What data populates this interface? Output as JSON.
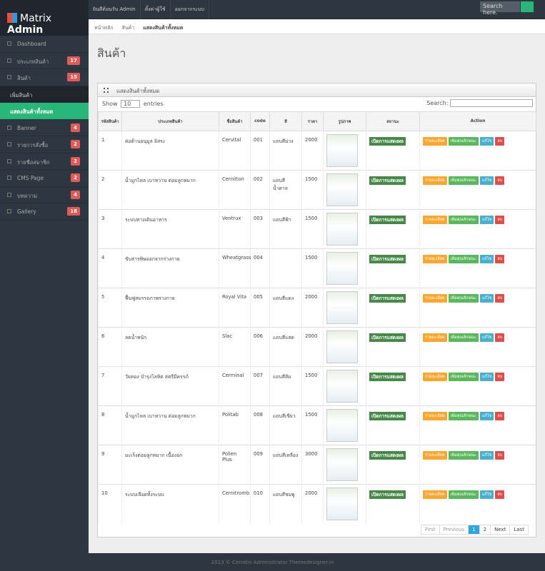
{
  "header": {
    "logo_part1": "Matrix",
    "logo_part2": "Admin",
    "nav": [
      "ยินดีต้อนรับ Admin",
      "ตั้งค่าผู้ใช้",
      "ออกจากระบบ"
    ],
    "search_placeholder": "Search here."
  },
  "sidebar": {
    "items": [
      {
        "label": "Dashboard"
      },
      {
        "label": "ประเภทสินค้า",
        "badge": 17
      },
      {
        "label": "สินค้า",
        "badge": 15
      },
      {
        "label": "เพิ่มสินค้า"
      },
      {
        "label": "แสดงสินค้าทั้งหมด"
      },
      {
        "label": "Banner",
        "badge": 4
      },
      {
        "label": "รายการสั่งซื้อ",
        "badge": 2
      },
      {
        "label": "รายชื่อสมาชิก",
        "badge": 2
      },
      {
        "label": "CMS Page",
        "badge": 2
      },
      {
        "label": "บทความ",
        "badge": 4
      },
      {
        "label": "Gallery",
        "badge": 18
      }
    ]
  },
  "breadcrumb": [
    "หน้าหลัก",
    "สินค้า",
    "แสดงสินค้าทั้งหมด"
  ],
  "page_title": "สินค้า",
  "widget": {
    "title": "แสดงสินค้าทั้งหมด",
    "show": "Show",
    "length": "10",
    "entries": "entries",
    "search": "Search:"
  },
  "table": {
    "columns": [
      "รหัสสินค้า",
      "ประเภทสินค้า",
      "ชื่อสินค้า",
      "code",
      "สี",
      "ราคา",
      "รูปภาพ",
      "สถานะ",
      "Action"
    ],
    "rows": [
      {
        "cells": [
          "1",
          "ต่อต้านอนุมูล อิสระ",
          "Cervital",
          "001",
          "แถบสีม่วง",
          "2000"
        ],
        "status": "เปิดการแสดงผล",
        "actions": [
          "รายละเอียด",
          "เพิ่มคุณลักษณะ",
          "แก้ไข",
          "ลบ"
        ]
      },
      {
        "cells": [
          "2",
          "น้ำมูกไหล เบาหวาน ต่อมลูกหมาก",
          "Cernilton",
          "002",
          "แถบสีน้ำตาล",
          "1500"
        ],
        "status": "เปิดการแสดงผล",
        "actions": [
          "รายละเอียด",
          "เพิ่มคุณลักษณะ",
          "แก้ไข",
          "ลบ"
        ]
      },
      {
        "cells": [
          "3",
          "ระบบทางเดินอาหาร",
          "Ventrux",
          "003",
          "แถบสีฟ้า",
          "1500"
        ],
        "status": "เปิดการแสดงผล",
        "actions": [
          "รายละเอียด",
          "เพิ่มคุณลักษณะ",
          "แก้ไข",
          "ลบ"
        ]
      },
      {
        "cells": [
          "4",
          "ขับสารพิษออกจากร่างกาย",
          "Wheatgrass",
          "004",
          null,
          "1500"
        ],
        "status": "เปิดการแสดงผล",
        "actions": [
          "รายละเอียด",
          "เพิ่มคุณลักษณะ",
          "แก้ไข",
          "ลบ"
        ]
      },
      {
        "cells": [
          "5",
          "ฟื้นฟูสมรรถภาพร่างกาย",
          "Royal Vita",
          "005",
          "แถบสีแดง",
          "2000"
        ],
        "status": "เปิดการแสดงผล",
        "actions": [
          "รายละเอียด",
          "เพิ่มคุณลักษณะ",
          "แก้ไข",
          "ลบ"
        ]
      },
      {
        "cells": [
          "6",
          "ลดน้ำหนัก",
          "Slac",
          "006",
          "แถบสีแสด",
          "2000"
        ],
        "status": "เปิดการแสดงผล",
        "actions": [
          "รายละเอียด",
          "เพิ่มคุณลักษณะ",
          "แก้ไข",
          "ลบ"
        ]
      },
      {
        "cells": [
          "7",
          "วัยทอง บำรุงโลหิต สตรีมีครรภ์",
          "Cerminal",
          "007",
          "แถบสีส้ม",
          "1500"
        ],
        "status": "เปิดการแสดงผล",
        "actions": [
          "รายละเอียด",
          "เพิ่มคุณลักษณะ",
          "แก้ไข",
          "ลบ"
        ]
      },
      {
        "cells": [
          "8",
          "น้ำมูกไหล เบาหวาน ต่อมลูกหมาก",
          "Politab",
          "008",
          "แถบสีเขียว",
          "1500"
        ],
        "status": "เปิดการแสดงผล",
        "actions": [
          "รายละเอียด",
          "เพิ่มคุณลักษณะ",
          "แก้ไข",
          "ลบ"
        ]
      },
      {
        "cells": [
          "9",
          "มะเร็งต่อมลูกหมาก เนื้องอก",
          "Pollen Plus",
          "009",
          "แถบสีเหลือง",
          "3000"
        ],
        "status": "เปิดการแสดงผล",
        "actions": [
          "รายละเอียด",
          "เพิ่มคุณลักษณะ",
          "แก้ไข",
          "ลบ"
        ]
      },
      {
        "cells": [
          "10",
          "ระบบเลือดทั้งระบบ",
          "Cernitromb",
          "010",
          "แถบสีชมพู",
          "2000"
        ],
        "status": "เปิดการแสดงผล",
        "actions": [
          "รายละเอียด",
          "เพิ่มคุณลักษณะ",
          "แก้ไข",
          "ลบ"
        ]
      }
    ]
  },
  "pagination": [
    "First",
    "Previous",
    "1",
    "2",
    "Next",
    "Last"
  ],
  "footer": "2013 © Cernitin Administrator Themedesigner.in"
}
